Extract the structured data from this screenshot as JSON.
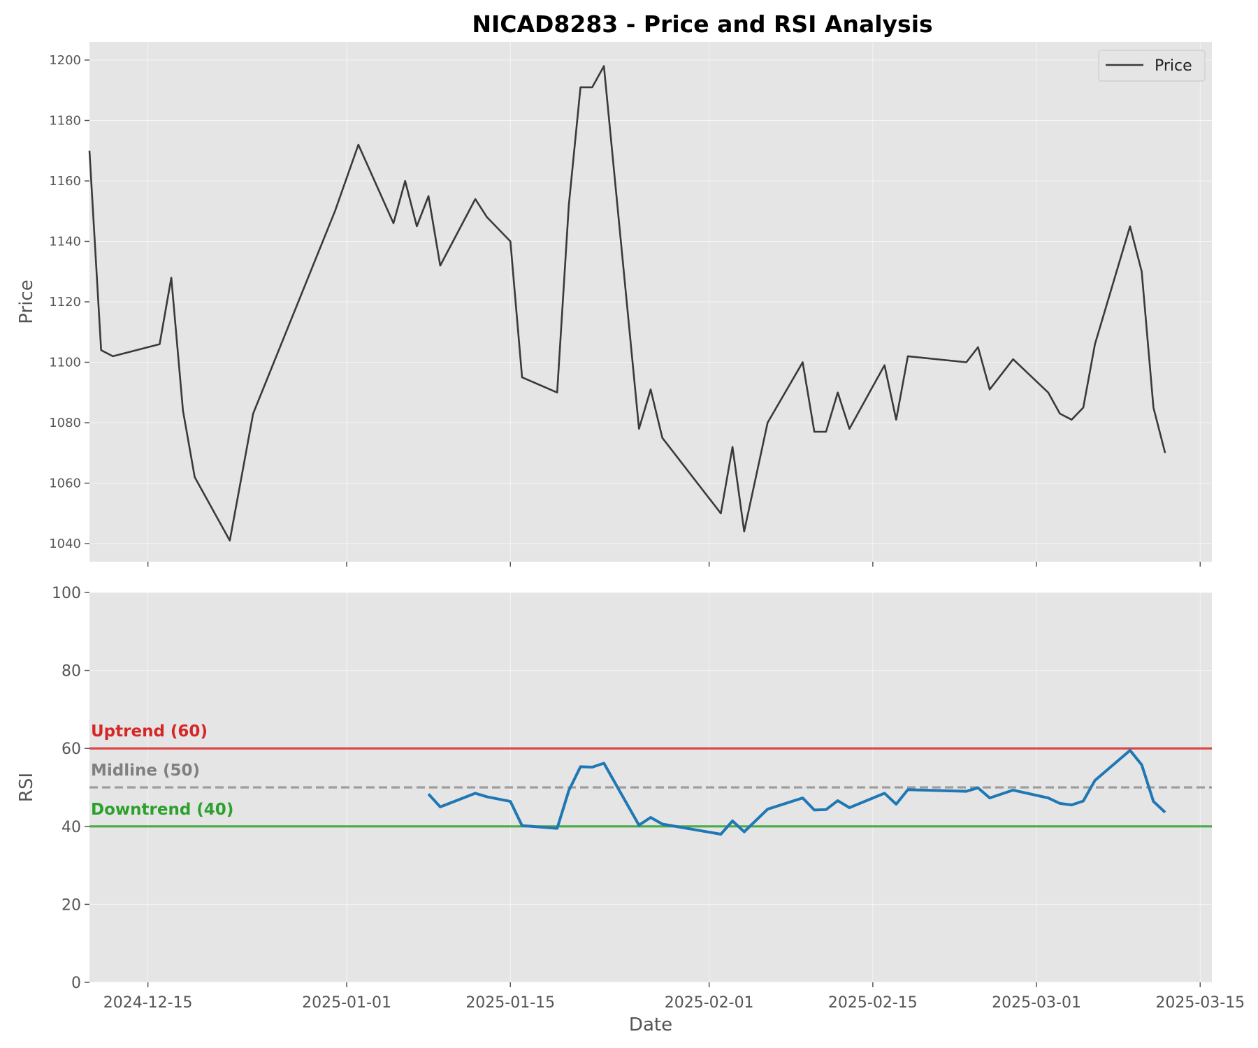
{
  "chart_data": {
    "type": "line",
    "title": "NICAD8283 - Price and RSI Analysis",
    "xlabel": "Date",
    "x_ticks": [
      "2024-12-15",
      "2025-01-01",
      "2025-01-15",
      "2025-02-01",
      "2025-02-15",
      "2025-03-01",
      "2025-03-15"
    ],
    "x_range": [
      "2024-12-10",
      "2025-03-16"
    ],
    "price_panel": {
      "ylabel": "Price",
      "ylim": [
        1034,
        1206
      ],
      "yticks": [
        1040,
        1060,
        1080,
        1100,
        1120,
        1140,
        1160,
        1180,
        1200
      ],
      "legend": "Price",
      "legend_position": "top-right",
      "grid": true,
      "color": "#3a3a3a",
      "series": {
        "name": "Price",
        "x": [
          "2024-12-10",
          "2024-12-11",
          "2024-12-12",
          "2024-12-16",
          "2024-12-17",
          "2024-12-18",
          "2024-12-19",
          "2024-12-22",
          "2024-12-24",
          "2024-12-31",
          "2025-01-02",
          "2025-01-05",
          "2025-01-06",
          "2025-01-07",
          "2025-01-08",
          "2025-01-09",
          "2025-01-12",
          "2025-01-13",
          "2025-01-15",
          "2025-01-16",
          "2025-01-19",
          "2025-01-20",
          "2025-01-21",
          "2025-01-22",
          "2025-01-23",
          "2025-01-26",
          "2025-01-27",
          "2025-01-28",
          "2025-02-02",
          "2025-02-03",
          "2025-02-04",
          "2025-02-06",
          "2025-02-09",
          "2025-02-10",
          "2025-02-11",
          "2025-02-12",
          "2025-02-13",
          "2025-02-16",
          "2025-02-17",
          "2025-02-18",
          "2025-02-23",
          "2025-02-24",
          "2025-02-25",
          "2025-02-27",
          "2025-03-02",
          "2025-03-03",
          "2025-03-04",
          "2025-03-05",
          "2025-03-06",
          "2025-03-09",
          "2025-03-10",
          "2025-03-11",
          "2025-03-12"
        ],
        "y": [
          1170,
          1104,
          1102,
          1106,
          1128,
          1084,
          1062,
          1041,
          1083,
          1150,
          1172,
          1146,
          1160,
          1145,
          1155,
          1132,
          1154,
          1148,
          1140,
          1095,
          1090,
          1152,
          1191,
          1191,
          1198,
          1078,
          1091,
          1075,
          1050,
          1072,
          1044,
          1080,
          1100,
          1077,
          1077,
          1090,
          1078,
          1099,
          1081,
          1102,
          1100,
          1105,
          1091,
          1101,
          1090,
          1083,
          1081,
          1085,
          1106,
          1145,
          1130,
          1085,
          1070
        ]
      }
    },
    "rsi_panel": {
      "ylabel": "RSI",
      "ylim": [
        0,
        100
      ],
      "yticks": [
        0,
        20,
        40,
        60,
        80,
        100
      ],
      "grid": true,
      "color": "#1f77b4",
      "series": {
        "name": "RSI",
        "x": [
          "2025-01-08",
          "2025-01-09",
          "2025-01-12",
          "2025-01-13",
          "2025-01-15",
          "2025-01-16",
          "2025-01-19",
          "2025-01-20",
          "2025-01-21",
          "2025-01-22",
          "2025-01-23",
          "2025-01-26",
          "2025-01-27",
          "2025-01-28",
          "2025-02-02",
          "2025-02-03",
          "2025-02-04",
          "2025-02-06",
          "2025-02-09",
          "2025-02-10",
          "2025-02-11",
          "2025-02-12",
          "2025-02-13",
          "2025-02-16",
          "2025-02-17",
          "2025-02-18",
          "2025-02-23",
          "2025-02-24",
          "2025-02-25",
          "2025-02-27",
          "2025-03-02",
          "2025-03-03",
          "2025-03-04",
          "2025-03-05",
          "2025-03-06",
          "2025-03-09",
          "2025-03-10",
          "2025-03-11",
          "2025-03-12"
        ],
        "y": [
          48.3,
          45.0,
          48.5,
          47.6,
          46.4,
          40.2,
          39.5,
          49.2,
          55.3,
          55.2,
          56.2,
          40.3,
          42.3,
          40.6,
          38.0,
          41.4,
          38.6,
          44.4,
          47.3,
          44.2,
          44.3,
          46.6,
          44.8,
          48.5,
          45.7,
          49.4,
          49.0,
          49.9,
          47.3,
          49.3,
          47.3,
          45.9,
          45.5,
          46.5,
          51.8,
          59.5,
          55.8,
          46.4,
          43.6
        ]
      },
      "reference_lines": [
        {
          "label": "Uptrend (60)",
          "value": 60,
          "color": "#d62728",
          "style": "solid"
        },
        {
          "label": "Midline (50)",
          "value": 50,
          "color": "#808080",
          "style": "dashed"
        },
        {
          "label": "Downtrend (40)",
          "value": 40,
          "color": "#2ca02c",
          "style": "solid"
        }
      ]
    }
  }
}
